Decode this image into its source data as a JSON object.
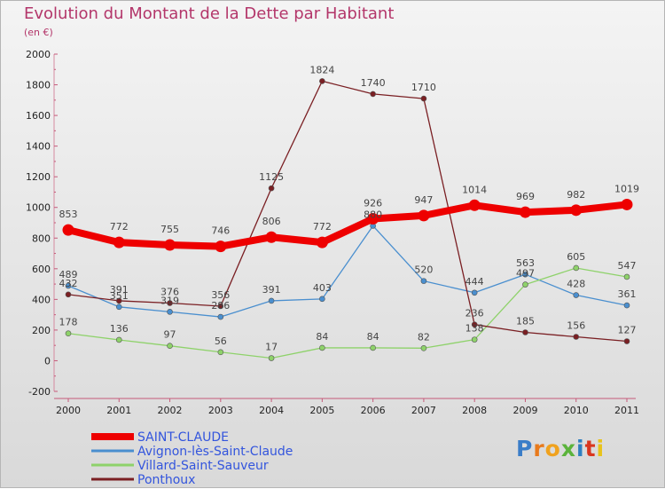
{
  "header": {
    "title": "Evolution du Montant de la Dette par Habitant",
    "unit": "(en €)"
  },
  "logo": {
    "text": "Proxiti",
    "letter_colors": [
      "#3a7dc8",
      "#e87a1c",
      "#f0a21e",
      "#5bb33b",
      "#2f7fc1",
      "#d9361f",
      "#e8c31b"
    ]
  },
  "chart_data": {
    "type": "line",
    "categories": [
      "2000",
      "2001",
      "2002",
      "2003",
      "2004",
      "2005",
      "2006",
      "2007",
      "2008",
      "2009",
      "2010",
      "2011"
    ],
    "ylim": [
      -200,
      2000
    ],
    "yticks": [
      -200,
      0,
      200,
      400,
      600,
      800,
      1000,
      1200,
      1400,
      1600,
      1800,
      2000
    ],
    "ytick_labels": [
      "-200",
      "0",
      "200",
      "400",
      "600",
      "800",
      "1000",
      "1200",
      "1400",
      "1600",
      "1800",
      "2000"
    ],
    "grid": false,
    "legend_position": "bottom-left",
    "series": [
      {
        "name": "SAINT-CLAUDE",
        "color": "#ee0000",
        "label_color": "#3355dd",
        "emphasis": true,
        "values": [
          853,
          772,
          755,
          746,
          806,
          772,
          926,
          947,
          1014,
          969,
          982,
          1019
        ]
      },
      {
        "name": "Avignon-lès-Saint-Claude",
        "color": "#4a8fcf",
        "label_color": "#3355dd",
        "emphasis": false,
        "values": [
          489,
          351,
          319,
          286,
          391,
          403,
          880,
          520,
          444,
          563,
          428,
          361
        ]
      },
      {
        "name": "Villard-Saint-Sauveur",
        "color": "#8ed26a",
        "label_color": "#3355dd",
        "emphasis": false,
        "values": [
          178,
          136,
          97,
          56,
          17,
          84,
          84,
          82,
          138,
          497,
          605,
          547
        ]
      },
      {
        "name": "Ponthoux",
        "color": "#7a1f23",
        "label_color": "#3355dd",
        "emphasis": false,
        "values": [
          432,
          391,
          376,
          356,
          1125,
          1824,
          1740,
          1710,
          236,
          185,
          156,
          127
        ]
      }
    ]
  }
}
